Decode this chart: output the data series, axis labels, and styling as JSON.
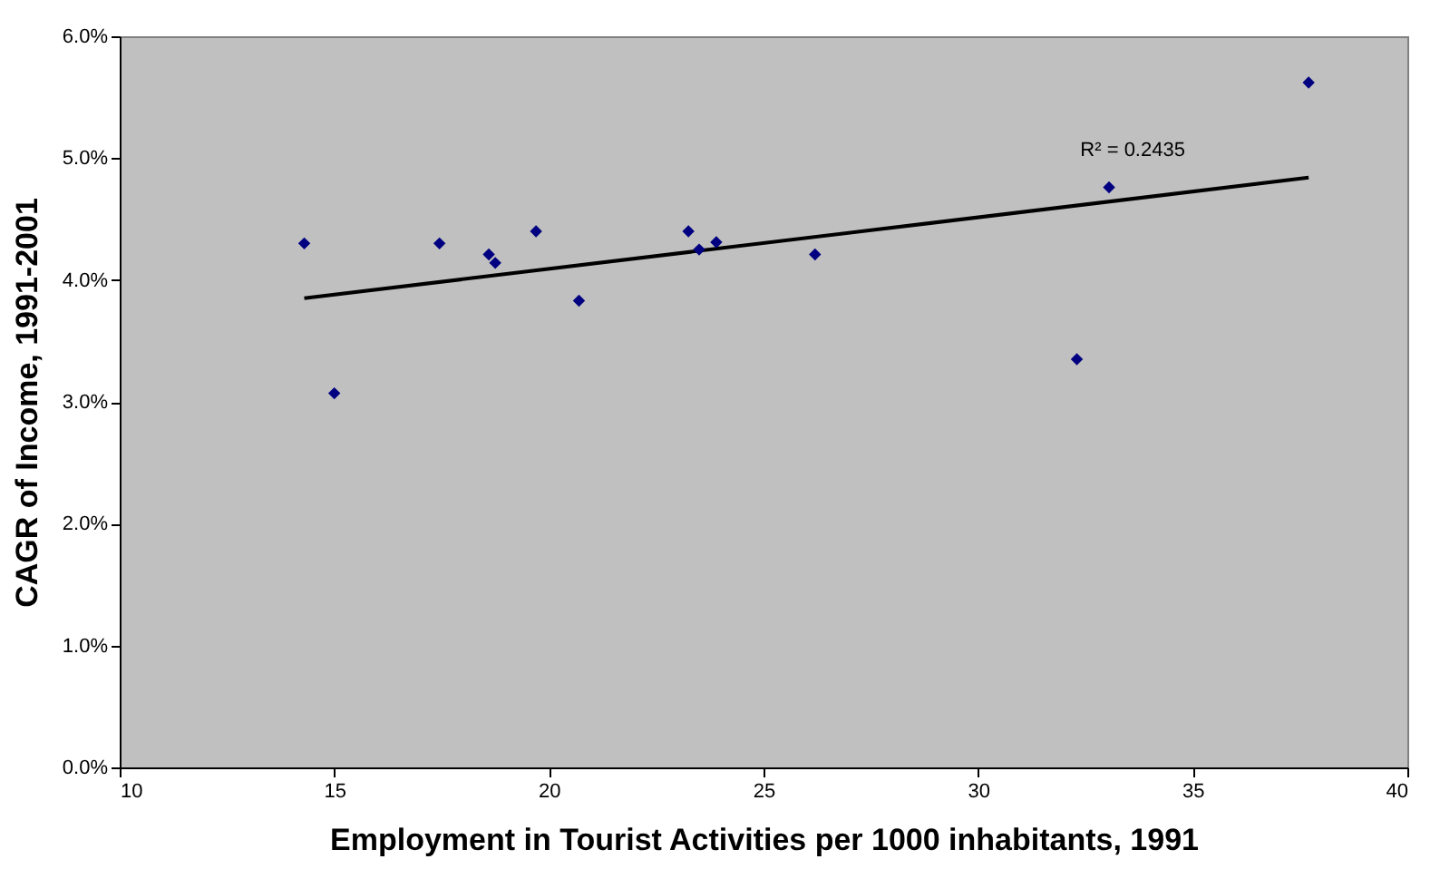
{
  "chart_data": {
    "type": "scatter",
    "xlabel": "Employment in Tourist Activities per 1000 inhabitants, 1991",
    "ylabel": "CAGR of Income, 1991-2001",
    "x": [
      14.3,
      15.0,
      17.45,
      18.6,
      18.75,
      19.7,
      20.7,
      23.25,
      23.5,
      23.9,
      26.2,
      32.3,
      33.05,
      37.7
    ],
    "series": [
      {
        "color": "#000080",
        "marker": "diamond",
        "values": [
          4.3,
          3.07,
          4.3,
          4.21,
          4.14,
          4.4,
          3.83,
          4.4,
          4.25,
          4.31,
          4.21,
          3.35,
          4.76,
          5.62
        ]
      },
      {
        "type": "line",
        "color": "#000000",
        "line_style": "solid",
        "x": [
          14.3,
          37.7
        ],
        "values": [
          3.85,
          4.84
        ]
      }
    ],
    "annotations": [
      "R² = 0.2435"
    ],
    "xlim": [
      10,
      40
    ],
    "xticks": [
      10,
      15,
      20,
      25,
      30,
      35,
      40
    ],
    "ylim": [
      0,
      6
    ],
    "yticks": [
      {
        "value": 0,
        "label": "0.0%"
      },
      {
        "value": 1,
        "label": "1.0%"
      },
      {
        "value": 2,
        "label": "2.0%"
      },
      {
        "value": 3,
        "label": "3.0%"
      },
      {
        "value": 4,
        "label": "4.0%"
      },
      {
        "value": 5,
        "label": "5.0%"
      },
      {
        "value": 6,
        "label": "6.0%"
      }
    ],
    "grid": false
  }
}
